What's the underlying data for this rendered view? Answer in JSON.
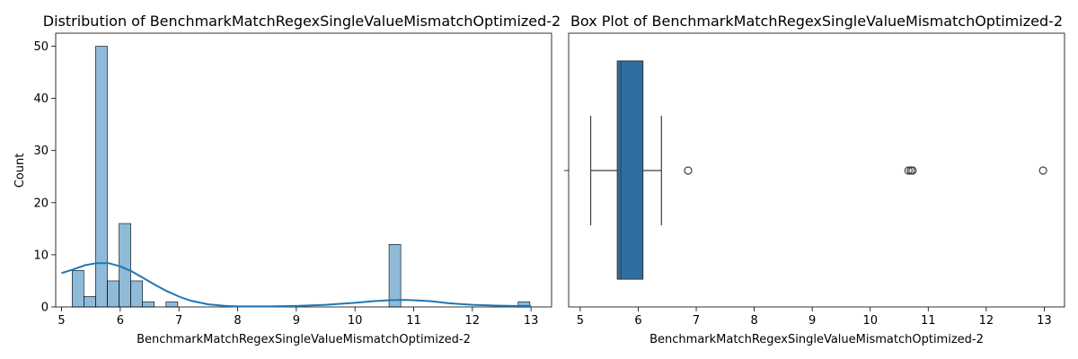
{
  "chart_data": [
    {
      "type": "bar",
      "title": "Distribution of BenchmarkMatchRegexSingleValueMismatchOptimized-2",
      "xlabel": "BenchmarkMatchRegexSingleValueMismatchOptimized-2",
      "ylabel": "Count",
      "xlim": [
        4.9,
        13.35
      ],
      "ylim": [
        0,
        52.5
      ],
      "xticks": [
        5,
        6,
        7,
        8,
        9,
        10,
        11,
        12,
        13
      ],
      "yticks": [
        0,
        10,
        20,
        30,
        40,
        50
      ],
      "bin_edges": [
        5.18,
        5.38,
        5.58,
        5.78,
        5.98,
        6.18,
        6.38,
        6.58,
        6.78,
        6.98,
        7.18,
        7.38,
        7.58,
        7.78,
        7.98,
        8.18,
        8.38,
        8.58,
        8.78,
        8.98,
        9.18,
        9.38,
        9.58,
        9.78,
        9.98,
        10.18,
        10.38,
        10.58,
        10.78,
        10.98,
        11.18,
        11.38,
        11.58,
        11.78,
        11.98,
        12.18,
        12.38,
        12.58,
        12.78,
        12.98
      ],
      "counts": [
        7,
        2,
        50,
        5,
        16,
        5,
        1,
        0,
        1,
        0,
        0,
        0,
        0,
        0,
        0,
        0,
        0,
        0,
        0,
        0,
        0,
        0,
        0,
        0,
        0,
        0,
        0,
        12,
        0,
        0,
        0,
        0,
        0,
        0,
        0,
        0,
        0,
        0,
        1
      ],
      "kde": {
        "x": [
          5.0,
          5.2,
          5.4,
          5.6,
          5.8,
          6.0,
          6.2,
          6.4,
          6.6,
          6.8,
          7.0,
          7.2,
          7.5,
          7.8,
          8.0,
          8.5,
          9.0,
          9.5,
          10.0,
          10.3,
          10.6,
          10.8,
          11.0,
          11.3,
          11.6,
          12.0,
          12.4,
          12.7,
          13.0
        ],
        "y": [
          6.5,
          7.2,
          8.0,
          8.4,
          8.4,
          7.8,
          6.8,
          5.5,
          4.2,
          3.0,
          2.0,
          1.2,
          0.5,
          0.2,
          0.1,
          0.1,
          0.2,
          0.4,
          0.8,
          1.1,
          1.3,
          1.35,
          1.3,
          1.1,
          0.7,
          0.4,
          0.25,
          0.2,
          0.2
        ]
      },
      "color": "#1f77b4"
    },
    {
      "type": "box",
      "title": "Box Plot of BenchmarkMatchRegexSingleValueMismatchOptimized-2",
      "xlabel": "BenchmarkMatchRegexSingleValueMismatchOptimized-2",
      "xlim": [
        4.8,
        13.35
      ],
      "xticks": [
        5,
        6,
        7,
        8,
        9,
        10,
        11,
        12,
        13
      ],
      "whisker_low": 5.18,
      "q1": 5.64,
      "median": 5.7,
      "q3": 6.08,
      "whisker_high": 6.4,
      "outliers": [
        6.86,
        10.66,
        10.7,
        10.73,
        12.98
      ],
      "color": "#2d6fa3"
    }
  ]
}
